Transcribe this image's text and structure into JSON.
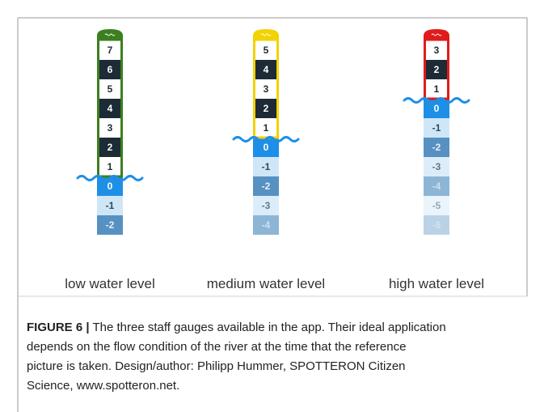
{
  "gauges": [
    {
      "label": "low water level",
      "color": "#3d7f1f",
      "segments": [
        "7",
        "6",
        "5",
        "4",
        "3",
        "2",
        "1",
        "0",
        "-1",
        "-2"
      ]
    },
    {
      "label": "medium water level",
      "color": "#f2d200",
      "segments": [
        "5",
        "4",
        "3",
        "2",
        "1",
        "0",
        "-1",
        "-2",
        "-3",
        "-4"
      ]
    },
    {
      "label": "high water level",
      "color": "#e01b1b",
      "segments": [
        "3",
        "2",
        "1",
        "0",
        "-1",
        "-2",
        "-3",
        "-4",
        "-5",
        "-6"
      ]
    }
  ],
  "caption": {
    "label": "FIGURE 6 |",
    "lines": [
      "The three staff gauges available in the app. Their ideal application",
      "depends on the flow condition of the river at the time that the reference",
      "picture is taken. Design/author: Philipp Hummer, SPOTTERON Citizen",
      "Science, www.spotteron.net."
    ]
  }
}
